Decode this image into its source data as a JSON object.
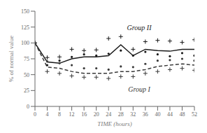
{
  "chart_data": {
    "type": "line",
    "x": [
      0,
      4,
      8,
      12,
      16,
      20,
      24,
      28,
      32,
      36,
      40,
      44,
      48,
      52
    ],
    "xlabel": "TIME (hours)",
    "ylabel": "% of normal value",
    "xlim": [
      0,
      52
    ],
    "ylim": [
      0,
      150
    ],
    "xticks": [
      0,
      4,
      8,
      12,
      16,
      20,
      24,
      28,
      32,
      36,
      40,
      44,
      48,
      52
    ],
    "yticks": [
      0,
      25,
      50,
      75,
      100,
      125,
      150
    ],
    "grid": false,
    "series": [
      {
        "type": "line",
        "line_style": "solid",
        "color": "#1a1a1a",
        "values": [
          100,
          70,
          68,
          75,
          78,
          78,
          80,
          97,
          80,
          90,
          88,
          87,
          90,
          90
        ]
      },
      {
        "type": "scatter",
        "marker": "plus",
        "color": "#1a1a1a",
        "values": [
          100,
          77,
          78,
          90,
          88,
          89,
          107,
          110,
          90,
          102,
          104,
          103,
          101,
          105
        ]
      },
      {
        "type": "scatter",
        "marker": "dot",
        "color": "#1a1a1a",
        "values": [
          100,
          65,
          72,
          78,
          82,
          80,
          83,
          88,
          80,
          86,
          82,
          79,
          84,
          80
        ]
      },
      {
        "type": "line",
        "line_style": "dashed",
        "color": "#3a3a3a",
        "values": [
          100,
          62,
          60,
          55,
          52,
          52,
          52,
          55,
          55,
          58,
          63,
          65,
          67,
          65
        ]
      },
      {
        "type": "scatter",
        "marker": "plus",
        "color": "#3a3a3a",
        "values": [
          100,
          55,
          52,
          48,
          46,
          46,
          44,
          47,
          47,
          52,
          55,
          58,
          60,
          57
        ]
      },
      {
        "type": "scatter",
        "marker": "dot",
        "color": "#3a3a3a",
        "values": [
          100,
          71,
          68,
          65,
          60,
          60,
          58,
          63,
          62,
          67,
          72,
          73,
          75,
          72
        ]
      }
    ],
    "annotations": [
      {
        "text": "Group II",
        "x": 34,
        "y": 120,
        "color": "#1a1a1a"
      },
      {
        "text": "Group I",
        "x": 34,
        "y": 23,
        "color": "#3a3a3a"
      }
    ]
  }
}
